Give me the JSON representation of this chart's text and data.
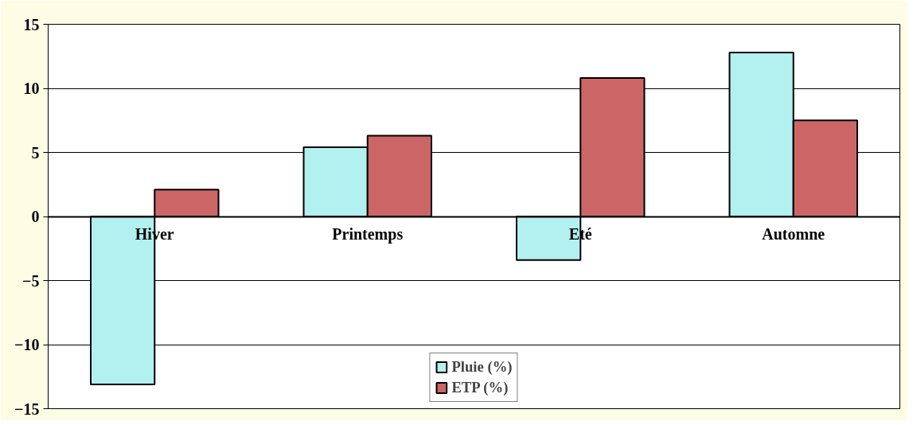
{
  "chart_data": {
    "type": "bar",
    "categories": [
      "Hiver",
      "Printemps",
      "Eté",
      "Automne"
    ],
    "series": [
      {
        "name": "Pluie (%)",
        "color": "#b3f0f0",
        "values": [
          -13.1,
          5.4,
          -3.4,
          12.8
        ]
      },
      {
        "name": "ETP (%)",
        "color": "#cc6666",
        "values": [
          2.1,
          6.3,
          10.8,
          7.5
        ]
      }
    ],
    "ylim": [
      -15,
      15
    ],
    "yticks": [
      -15,
      -10,
      -5,
      0,
      5,
      10,
      15
    ],
    "grid": "y",
    "legend": "bottom"
  }
}
